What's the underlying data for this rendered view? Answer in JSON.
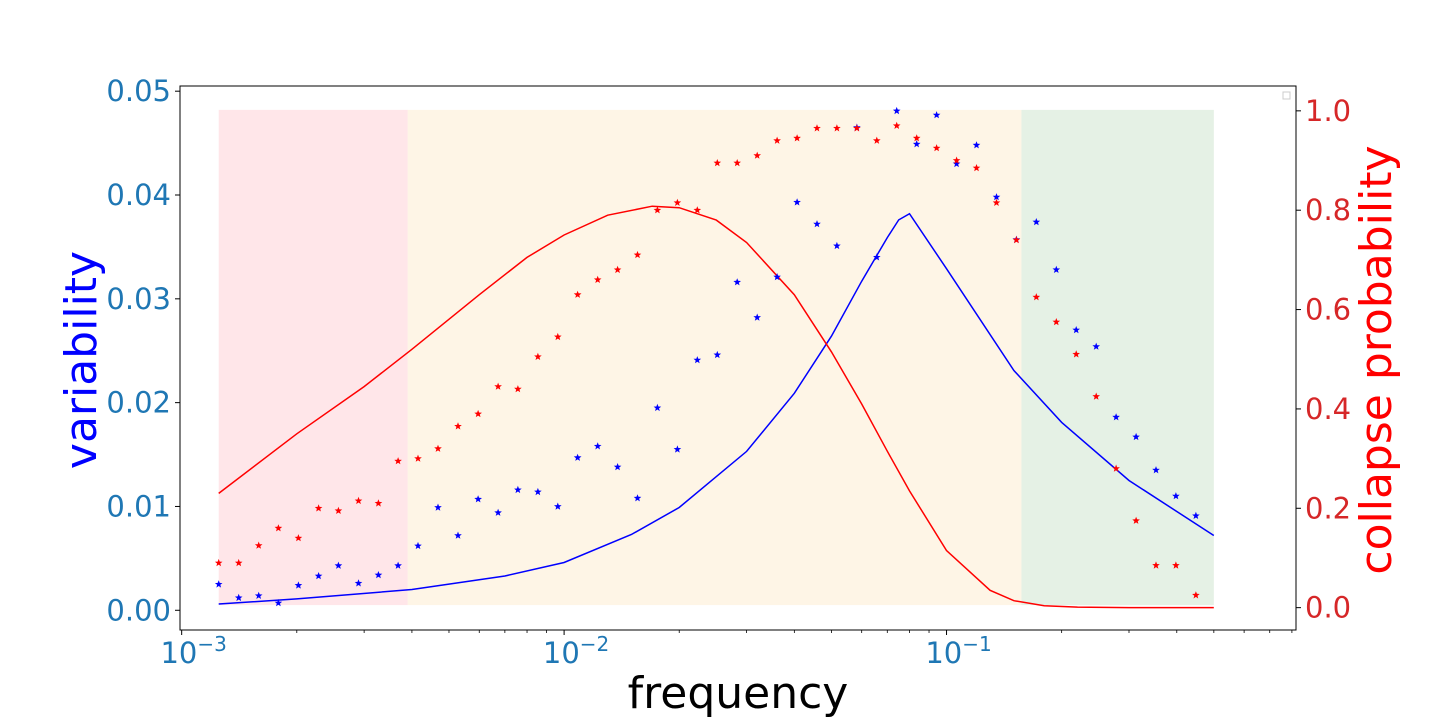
{
  "chart_data": {
    "type": "scatter",
    "title": "",
    "xlabel": "frequency",
    "ylabel_left": "variability",
    "ylabel_right": "collapse probability",
    "x_scale": "log",
    "xlim": [
      0.00099,
      0.82
    ],
    "ylim_left": [
      -0.0019,
      0.0505
    ],
    "ylim_right": [
      -0.045,
      1.05
    ],
    "grid": false,
    "legend": "top-right, empty",
    "x_ticks": [
      {
        "value": 0.001,
        "base": "10",
        "exp": "−3"
      },
      {
        "value": 0.01,
        "base": "10",
        "exp": "−2"
      },
      {
        "value": 0.1,
        "base": "10",
        "exp": "−1"
      }
    ],
    "y_ticks_left": [
      "0.00",
      "0.01",
      "0.02",
      "0.03",
      "0.04",
      "0.05"
    ],
    "y_ticks_right": [
      "0.0",
      "0.2",
      "0.4",
      "0.6",
      "0.8",
      "1.0"
    ],
    "colors": {
      "left_axis": "#1f77b4",
      "right_axis": "#d62728",
      "variability": "#0000ff",
      "collapse": "#ff0000"
    },
    "regions": [
      {
        "x0": 0.00125,
        "x1": 0.0039,
        "color": "#ffb6c1"
      },
      {
        "x0": 0.0039,
        "x1": 0.157,
        "color": "#fde2b8"
      },
      {
        "x0": 0.157,
        "x1": 0.5,
        "color": "#b4d7b4"
      }
    ],
    "region_y_range": [
      0.0005,
      0.0482
    ],
    "x": [
      0.00125,
      0.00141,
      0.00159,
      0.00179,
      0.00202,
      0.00228,
      0.00257,
      0.0029,
      0.00327,
      0.00368,
      0.00415,
      0.00468,
      0.00528,
      0.00596,
      0.00672,
      0.00757,
      0.00854,
      0.00963,
      0.01085,
      0.01224,
      0.0138,
      0.01556,
      0.01754,
      0.01978,
      0.0223,
      0.02515,
      0.02836,
      0.03198,
      0.03606,
      0.04066,
      0.04584,
      0.05169,
      0.05828,
      0.06572,
      0.0741,
      0.08355,
      0.09422,
      0.10624,
      0.11979,
      0.13507,
      0.1523,
      0.17173,
      0.19364,
      0.21835,
      0.2462,
      0.27761,
      0.31303,
      0.35297,
      0.398,
      0.44877,
      0.50603
    ],
    "series": [
      {
        "name": "variability",
        "axis": "left",
        "points": [
          0.0025,
          0.0012,
          0.0014,
          0.0007,
          0.0024,
          0.0033,
          0.0043,
          0.0026,
          0.0034,
          0.0043,
          0.0062,
          0.0099,
          0.0072,
          0.0107,
          0.0094,
          0.0116,
          0.0114,
          0.01,
          0.0147,
          0.0158,
          0.0138,
          0.0108,
          0.0195,
          0.0155,
          0.0241,
          0.0246,
          0.0316,
          0.0282,
          0.0321,
          0.0393,
          0.0372,
          0.0351,
          0.0465,
          0.034,
          0.0481,
          0.0449,
          0.0477,
          0.043,
          0.0448,
          0.0398,
          0.0357,
          0.0374,
          0.0328,
          0.027,
          0.0254,
          0.0186,
          0.0167,
          0.0135,
          0.011,
          0.0091
        ],
        "curve_x": [
          0.00125,
          0.002,
          0.004,
          0.007,
          0.01,
          0.015,
          0.02,
          0.03,
          0.04,
          0.05,
          0.06,
          0.07,
          0.075,
          0.08,
          0.1,
          0.15,
          0.2,
          0.3,
          0.5
        ],
        "curve": [
          0.0006,
          0.0011,
          0.002,
          0.0033,
          0.0046,
          0.0073,
          0.0099,
          0.0153,
          0.0209,
          0.0264,
          0.0317,
          0.0359,
          0.0376,
          0.0382,
          0.0329,
          0.0231,
          0.0181,
          0.0125,
          0.0072
        ]
      },
      {
        "name": "collapse probability",
        "axis": "right",
        "points": [
          0.09,
          0.09,
          0.125,
          0.16,
          0.14,
          0.2,
          0.195,
          0.215,
          0.21,
          0.295,
          0.3,
          0.32,
          0.365,
          0.39,
          0.445,
          0.44,
          0.505,
          0.545,
          0.63,
          0.66,
          0.68,
          0.71,
          0.8,
          0.815,
          0.8,
          0.895,
          0.895,
          0.91,
          0.94,
          0.945,
          0.965,
          0.965,
          0.965,
          0.94,
          0.97,
          0.945,
          0.925,
          0.9,
          0.885,
          0.815,
          0.74,
          0.625,
          0.575,
          0.51,
          0.425,
          0.28,
          0.175,
          0.085,
          0.085,
          0.025
        ],
        "curve_x": [
          0.00125,
          0.002,
          0.003,
          0.004,
          0.006,
          0.008,
          0.01,
          0.013,
          0.017,
          0.02,
          0.025,
          0.03,
          0.04,
          0.05,
          0.06,
          0.07,
          0.08,
          0.1,
          0.13,
          0.15,
          0.18,
          0.22,
          0.3,
          0.5
        ],
        "curve": [
          0.23,
          0.35,
          0.445,
          0.52,
          0.63,
          0.705,
          0.75,
          0.79,
          0.808,
          0.805,
          0.78,
          0.735,
          0.63,
          0.515,
          0.41,
          0.315,
          0.235,
          0.115,
          0.035,
          0.014,
          0.004,
          0.001,
          0.0,
          0.0
        ]
      }
    ]
  }
}
